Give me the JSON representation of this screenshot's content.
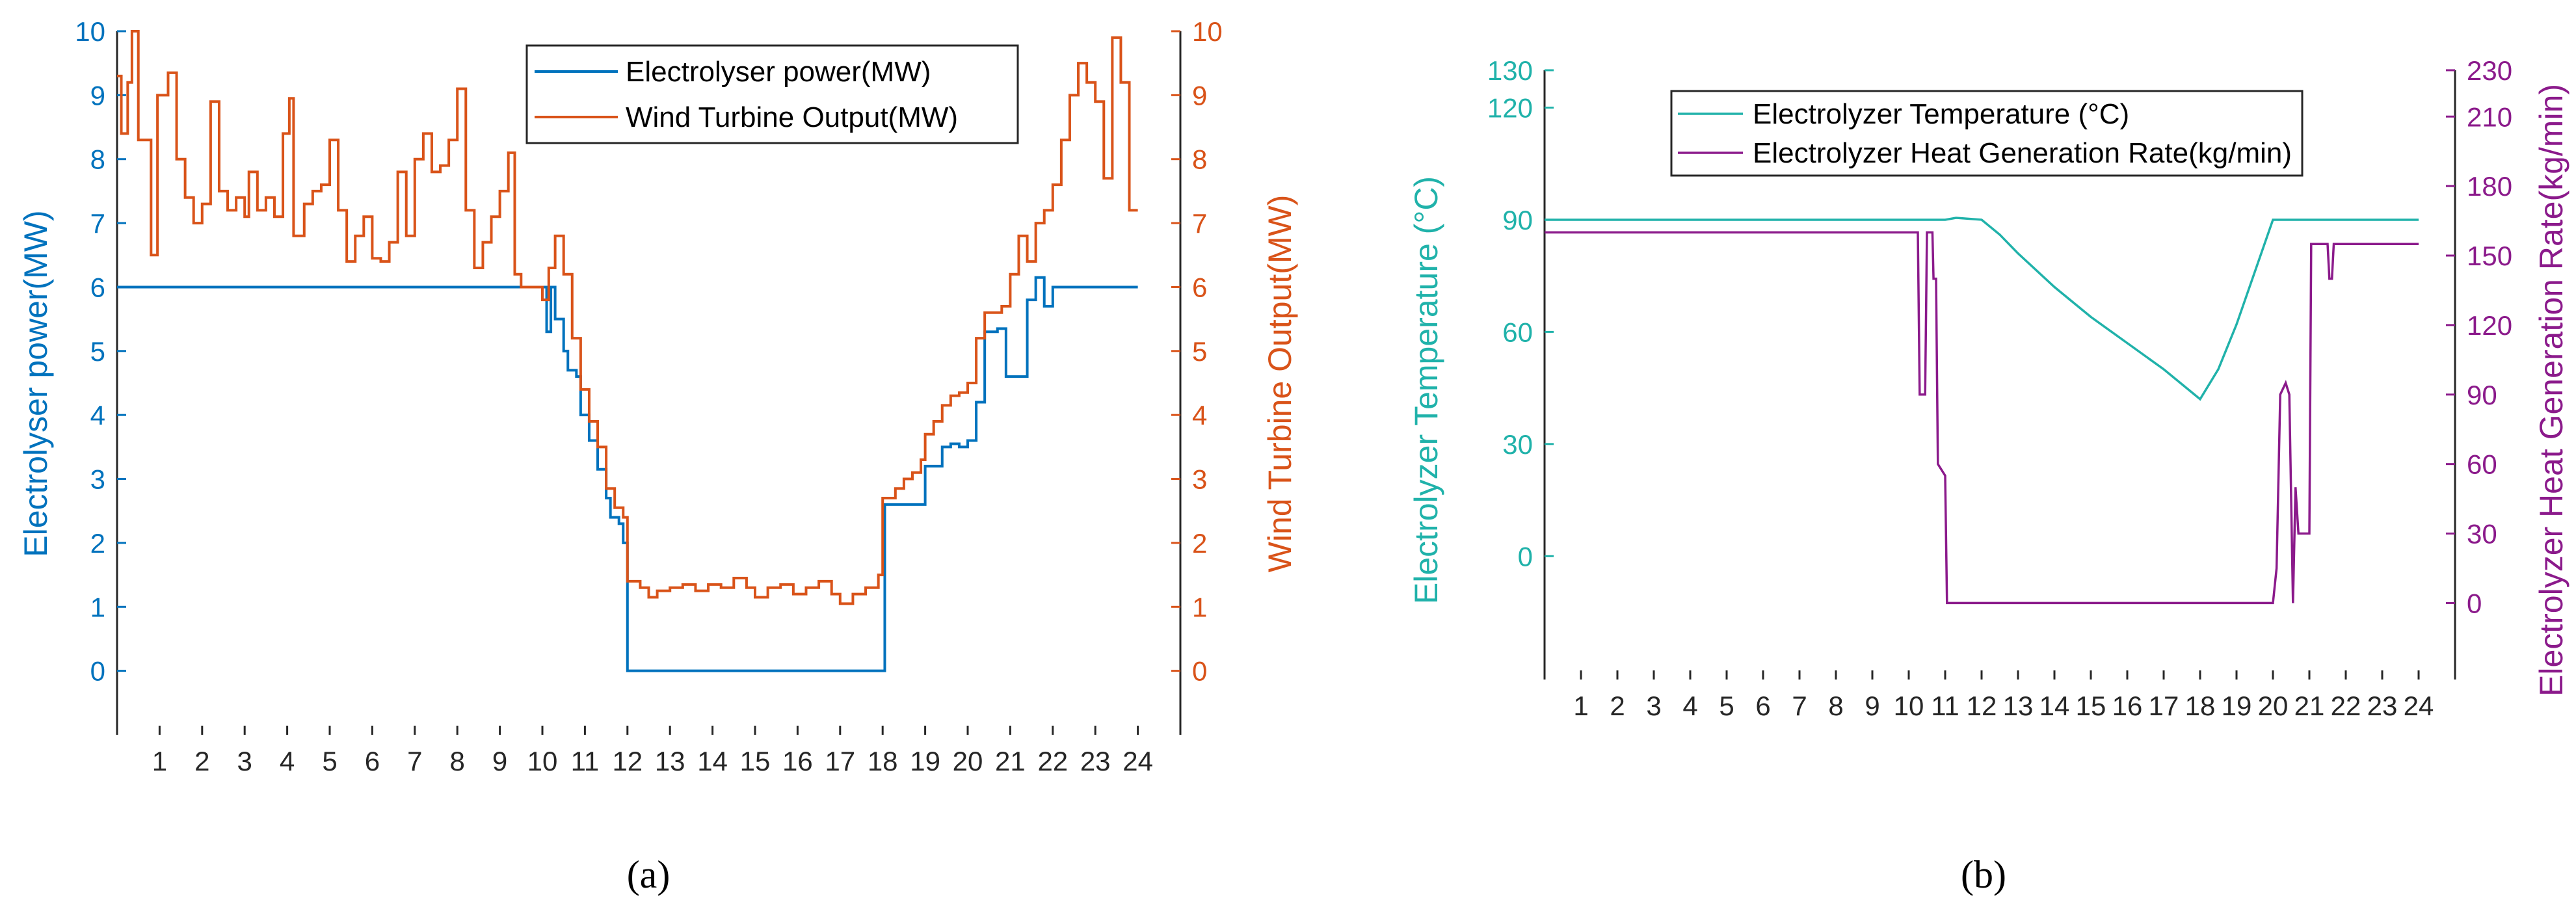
{
  "chart_data": [
    {
      "type": "line",
      "panel_label": "(a)",
      "x_ticks": [
        "1",
        "2",
        "3",
        "4",
        "5",
        "6",
        "7",
        "8",
        "9",
        "10",
        "11",
        "12",
        "13",
        "14",
        "15",
        "16",
        "17",
        "18",
        "19",
        "20",
        "21",
        "22",
        "23",
        "24"
      ],
      "xlim": [
        0,
        25
      ],
      "ylabel_left": "Electrolyser power(MW)",
      "ylabel_right": "Wind Turbine Output(MW)",
      "ylim_left": [
        -1,
        10
      ],
      "ylim_right": [
        -1,
        10
      ],
      "yticks_left": [
        "0",
        "1",
        "2",
        "3",
        "4",
        "5",
        "6",
        "7",
        "8",
        "9",
        "10"
      ],
      "yticks_right": [
        "0",
        "1",
        "2",
        "3",
        "4",
        "5",
        "6",
        "7",
        "8",
        "9",
        "10"
      ],
      "legend_position": "top-right",
      "colors": {
        "s1": "#0072BD",
        "s2": "#D95319"
      },
      "series": [
        {
          "name": "Electrolyser power(MW)",
          "axis": "left",
          "points": [
            [
              0,
              6
            ],
            [
              10,
              6
            ],
            [
              10.1,
              5.3
            ],
            [
              10.2,
              6
            ],
            [
              10.3,
              5.5
            ],
            [
              10.5,
              5
            ],
            [
              10.6,
              4.7
            ],
            [
              10.8,
              4.6
            ],
            [
              10.9,
              4
            ],
            [
              11.1,
              3.6
            ],
            [
              11.3,
              3.15
            ],
            [
              11.5,
              2.7
            ],
            [
              11.6,
              2.4
            ],
            [
              11.8,
              2.3
            ],
            [
              11.9,
              2
            ],
            [
              12,
              0
            ],
            [
              18,
              0
            ],
            [
              18.05,
              2.6
            ],
            [
              18.9,
              2.6
            ],
            [
              19,
              3.2
            ],
            [
              19.4,
              3.5
            ],
            [
              19.6,
              3.55
            ],
            [
              19.8,
              3.5
            ],
            [
              20,
              3.6
            ],
            [
              20.2,
              4.2
            ],
            [
              20.4,
              5.3
            ],
            [
              20.7,
              5.35
            ],
            [
              20.9,
              4.6
            ],
            [
              21.4,
              5.8
            ],
            [
              21.6,
              6.15
            ],
            [
              21.8,
              5.7
            ],
            [
              22,
              6
            ],
            [
              24,
              6
            ]
          ]
        },
        {
          "name": "Wind Turbine Output(MW)",
          "axis": "right",
          "points": [
            [
              0,
              9.3
            ],
            [
              0.1,
              8.4
            ],
            [
              0.25,
              9.2
            ],
            [
              0.35,
              10
            ],
            [
              0.5,
              8.3
            ],
            [
              0.8,
              6.5
            ],
            [
              0.95,
              9
            ],
            [
              1.2,
              9.35
            ],
            [
              1.4,
              8
            ],
            [
              1.6,
              7.4
            ],
            [
              1.8,
              7
            ],
            [
              2,
              7.3
            ],
            [
              2.2,
              8.9
            ],
            [
              2.4,
              7.5
            ],
            [
              2.6,
              7.2
            ],
            [
              2.8,
              7.4
            ],
            [
              3,
              7.1
            ],
            [
              3.1,
              7.8
            ],
            [
              3.3,
              7.2
            ],
            [
              3.5,
              7.4
            ],
            [
              3.7,
              7.1
            ],
            [
              3.9,
              8.4
            ],
            [
              4.05,
              8.95
            ],
            [
              4.15,
              6.8
            ],
            [
              4.4,
              7.3
            ],
            [
              4.6,
              7.5
            ],
            [
              4.8,
              7.6
            ],
            [
              5,
              8.3
            ],
            [
              5.2,
              7.2
            ],
            [
              5.4,
              6.4
            ],
            [
              5.6,
              6.8
            ],
            [
              5.8,
              7.1
            ],
            [
              6,
              6.45
            ],
            [
              6.2,
              6.4
            ],
            [
              6.4,
              6.7
            ],
            [
              6.6,
              7.8
            ],
            [
              6.8,
              6.8
            ],
            [
              7,
              8
            ],
            [
              7.2,
              8.4
            ],
            [
              7.4,
              7.8
            ],
            [
              7.6,
              7.9
            ],
            [
              7.8,
              8.3
            ],
            [
              8,
              9.1
            ],
            [
              8.2,
              7.2
            ],
            [
              8.4,
              6.3
            ],
            [
              8.6,
              6.7
            ],
            [
              8.8,
              7.1
            ],
            [
              9,
              7.5
            ],
            [
              9.2,
              8.1
            ],
            [
              9.35,
              6.2
            ],
            [
              9.5,
              6
            ],
            [
              10,
              5.8
            ],
            [
              10.15,
              6.3
            ],
            [
              10.3,
              6.8
            ],
            [
              10.5,
              6.2
            ],
            [
              10.7,
              5.2
            ],
            [
              10.9,
              4.4
            ],
            [
              11.1,
              3.9
            ],
            [
              11.3,
              3.5
            ],
            [
              11.5,
              2.85
            ],
            [
              11.7,
              2.55
            ],
            [
              11.9,
              2.4
            ],
            [
              12,
              1.4
            ],
            [
              12.3,
              1.3
            ],
            [
              12.5,
              1.15
            ],
            [
              12.7,
              1.25
            ],
            [
              13,
              1.3
            ],
            [
              13.3,
              1.35
            ],
            [
              13.6,
              1.25
            ],
            [
              13.9,
              1.35
            ],
            [
              14.2,
              1.3
            ],
            [
              14.5,
              1.45
            ],
            [
              14.8,
              1.3
            ],
            [
              15,
              1.15
            ],
            [
              15.3,
              1.3
            ],
            [
              15.6,
              1.35
            ],
            [
              15.9,
              1.2
            ],
            [
              16.2,
              1.3
            ],
            [
              16.5,
              1.4
            ],
            [
              16.8,
              1.2
            ],
            [
              17,
              1.05
            ],
            [
              17.3,
              1.2
            ],
            [
              17.6,
              1.3
            ],
            [
              17.9,
              1.5
            ],
            [
              18,
              2.7
            ],
            [
              18.3,
              2.85
            ],
            [
              18.5,
              3
            ],
            [
              18.7,
              3.1
            ],
            [
              18.9,
              3.3
            ],
            [
              19,
              3.7
            ],
            [
              19.2,
              3.9
            ],
            [
              19.4,
              4.15
            ],
            [
              19.6,
              4.3
            ],
            [
              19.8,
              4.35
            ],
            [
              20,
              4.5
            ],
            [
              20.2,
              5.2
            ],
            [
              20.4,
              5.6
            ],
            [
              20.6,
              5.6
            ],
            [
              20.8,
              5.7
            ],
            [
              21,
              6.2
            ],
            [
              21.2,
              6.8
            ],
            [
              21.4,
              6.4
            ],
            [
              21.6,
              7
            ],
            [
              21.8,
              7.2
            ],
            [
              22,
              7.6
            ],
            [
              22.2,
              8.3
            ],
            [
              22.4,
              9
            ],
            [
              22.6,
              9.5
            ],
            [
              22.8,
              9.2
            ],
            [
              23,
              8.9
            ],
            [
              23.2,
              7.7
            ],
            [
              23.4,
              9.9
            ],
            [
              23.6,
              9.2
            ],
            [
              23.8,
              7.2
            ],
            [
              24,
              7.2
            ]
          ]
        }
      ]
    },
    {
      "type": "line",
      "panel_label": "(b)",
      "x_ticks": [
        "1",
        "2",
        "3",
        "4",
        "5",
        "6",
        "7",
        "8",
        "9",
        "10",
        "11",
        "12",
        "13",
        "14",
        "15",
        "16",
        "17",
        "18",
        "19",
        "20",
        "21",
        "22",
        "23",
        "24"
      ],
      "xlim": [
        0,
        25
      ],
      "ylabel_left": "Electrolyzer Temperature (°C)",
      "ylabel_right": "Electrolyzer Heat Generation Rate(kg/min)",
      "ylim_left": [
        -33,
        130
      ],
      "ylim_right": [
        -33,
        230
      ],
      "yticks_left": [
        "0",
        "30",
        "60",
        "90",
        "120",
        "130"
      ],
      "yticks_right": [
        "0",
        "30",
        "60",
        "90",
        "120",
        "150",
        "180",
        "210",
        "230"
      ],
      "legend_position": "top",
      "colors": {
        "s1": "#20B2AA",
        "s2": "#8B1A8B"
      },
      "series": [
        {
          "name": "Electrolyzer Temperature (°C)",
          "axis": "left",
          "points": [
            [
              0,
              90
            ],
            [
              11,
              90
            ],
            [
              11.3,
              90.5
            ],
            [
              12,
              90
            ],
            [
              12.5,
              86
            ],
            [
              13,
              81
            ],
            [
              14,
              72
            ],
            [
              15,
              64
            ],
            [
              16,
              57
            ],
            [
              17,
              50
            ],
            [
              18,
              42
            ],
            [
              18.5,
              50
            ],
            [
              19,
              62
            ],
            [
              19.5,
              76
            ],
            [
              20,
              90
            ],
            [
              24,
              90
            ]
          ]
        },
        {
          "name": "Electrolyzer Heat Generation Rate(kg/min)",
          "axis": "right",
          "points": [
            [
              0,
              160
            ],
            [
              10.25,
              160
            ],
            [
              10.3,
              90
            ],
            [
              10.45,
              90
            ],
            [
              10.5,
              160
            ],
            [
              10.65,
              160
            ],
            [
              10.68,
              140
            ],
            [
              10.75,
              140
            ],
            [
              10.8,
              60
            ],
            [
              11,
              55
            ],
            [
              11.05,
              0
            ],
            [
              20,
              0
            ],
            [
              20.1,
              15
            ],
            [
              20.2,
              90
            ],
            [
              20.35,
              95
            ],
            [
              20.45,
              90
            ],
            [
              20.55,
              0
            ],
            [
              20.62,
              50
            ],
            [
              20.7,
              30
            ],
            [
              21,
              30
            ],
            [
              21.05,
              155
            ],
            [
              21.5,
              155
            ],
            [
              21.55,
              140
            ],
            [
              21.62,
              140
            ],
            [
              21.67,
              155
            ],
            [
              24,
              155
            ]
          ]
        }
      ]
    }
  ]
}
